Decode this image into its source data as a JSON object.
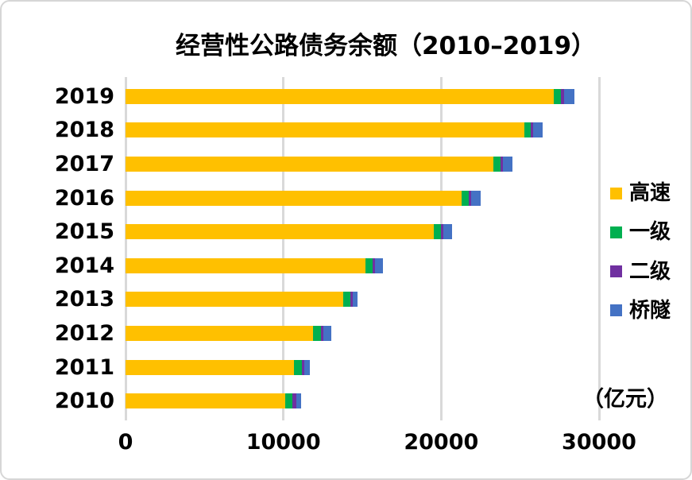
{
  "chart_data": {
    "type": "bar",
    "orientation": "horizontal",
    "stacked": true,
    "title": "经营性公路债务余额（2010–2019）",
    "unit_label": "（亿元）",
    "xlabel": "",
    "ylabel": "",
    "xlim": [
      0,
      30000
    ],
    "x_ticks": [
      0,
      10000,
      20000,
      30000
    ],
    "x_tick_labels": [
      "0",
      "10000",
      "20000",
      "30000"
    ],
    "grid": "vertical-only",
    "gridline_color": "#D9D9D9",
    "text_color": "#000000",
    "legend_position": "right",
    "categories_top_to_bottom": [
      "2019",
      "2018",
      "2017",
      "2016",
      "2015",
      "2014",
      "2013",
      "2012",
      "2011",
      "2010"
    ],
    "series": [
      {
        "id": "expressway",
        "name": "高速",
        "color": "#FFC000",
        "values": [
          27150,
          25290,
          23290,
          21310,
          19510,
          15180,
          13770,
          11900,
          10650,
          10120
        ]
      },
      {
        "id": "class1-road",
        "name": "一级",
        "color": "#00B050",
        "values": [
          450,
          400,
          450,
          440,
          450,
          470,
          450,
          470,
          500,
          470
        ]
      },
      {
        "id": "class2-road",
        "name": "二级",
        "color": "#7030A0",
        "values": [
          170,
          140,
          150,
          170,
          170,
          170,
          170,
          170,
          170,
          210
        ]
      },
      {
        "id": "bridge-tunnel",
        "name": "桥隧",
        "color": "#4472C4",
        "values": [
          650,
          610,
          620,
          590,
          550,
          500,
          330,
          500,
          380,
          330
        ]
      }
    ],
    "totals_top_to_bottom": [
      28420,
      26440,
      24510,
      22510,
      20680,
      16320,
      14720,
      13040,
      11700,
      11130
    ]
  }
}
